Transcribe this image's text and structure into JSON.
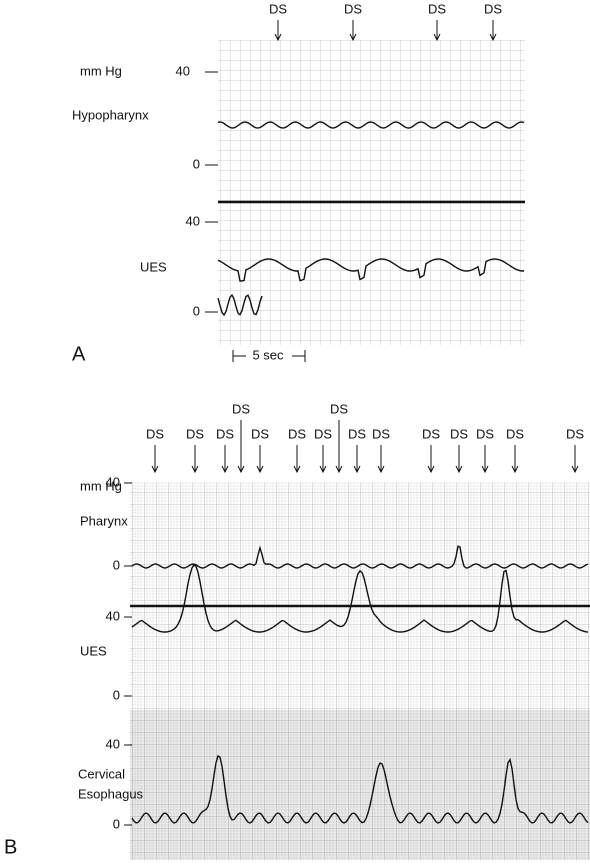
{
  "panel_a": {
    "label": "A",
    "ds": [
      "DS",
      "DS",
      "DS",
      "DS"
    ],
    "unit": "mm Hg",
    "channels": [
      {
        "name": "Hypopharynx",
        "top": "40",
        "zero": "0"
      },
      {
        "name": "UES",
        "top": "40",
        "zero": "0"
      }
    ],
    "time_scale": "5 sec"
  },
  "panel_b": {
    "label": "B",
    "ds": [
      "DS",
      "DS",
      "DS",
      "DS",
      "DS",
      "DS",
      "DS",
      "DS",
      "DS",
      "DS",
      "DS",
      "DS",
      "DS",
      "DS",
      "DS"
    ],
    "unit": "mm Hg",
    "channels": [
      {
        "name": "Pharynx",
        "top": "40",
        "zero": "0"
      },
      {
        "name": "UES",
        "top": "40",
        "zero": "0"
      },
      {
        "name": [
          "Cervical",
          "Esophagus"
        ],
        "top": "40",
        "zero": "0"
      }
    ]
  }
}
